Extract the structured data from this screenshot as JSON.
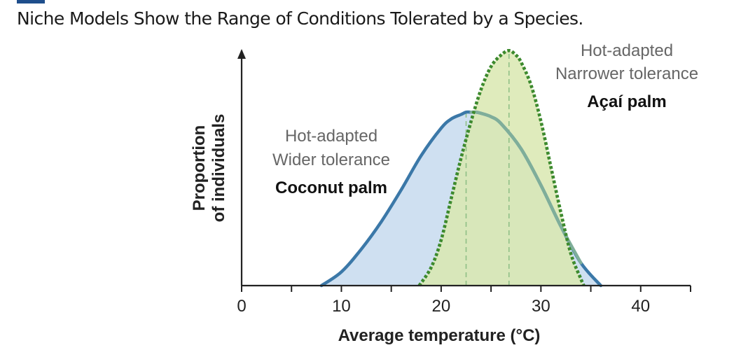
{
  "header": {
    "title": "Niche Models Show the Range of Conditions Tolerated by a Species.",
    "accent_color": "#1f4e8c"
  },
  "chart_data": {
    "type": "area",
    "xlabel": "Average temperature (°C)",
    "ylabel": [
      "Proportion",
      "of individuals"
    ],
    "xlim": [
      0,
      45
    ],
    "ylim": [
      0,
      1.0
    ],
    "x_ticks": [
      0,
      10,
      20,
      30,
      40
    ],
    "x_minor_ticks": [
      5,
      15,
      25,
      35,
      45
    ],
    "grid": false,
    "legend": "none",
    "series": [
      {
        "key": "coconut",
        "name": "Coconut palm",
        "traits": [
          "Hot-adapted",
          "Wider tolerance"
        ],
        "color": "#3b78a8",
        "fill": "#cfe0f1",
        "style": "solid",
        "peak_range": [
          22.5,
          23.5
        ],
        "x": [
          8,
          10,
          12,
          14,
          16,
          18,
          20,
          21,
          22,
          22.5,
          23,
          23.5,
          24,
          25,
          26,
          28,
          30,
          32,
          34,
          36
        ],
        "y": [
          0.0,
          0.06,
          0.16,
          0.28,
          0.42,
          0.57,
          0.69,
          0.73,
          0.75,
          0.76,
          0.76,
          0.76,
          0.755,
          0.74,
          0.71,
          0.6,
          0.44,
          0.26,
          0.1,
          0.0
        ]
      },
      {
        "key": "acai",
        "name": "Açaí palm",
        "traits": [
          "Hot-adapted",
          "Narrower tolerance"
        ],
        "color": "#3d8a2e",
        "fill": "#d9e8b0",
        "style": "dotted",
        "peak": 26.8,
        "x": [
          17.8,
          19,
          20,
          21,
          22,
          23,
          24,
          25,
          26,
          26.8,
          27.5,
          28,
          29,
          30,
          31,
          32,
          33,
          34,
          34.3
        ],
        "y": [
          0.0,
          0.08,
          0.2,
          0.38,
          0.56,
          0.72,
          0.86,
          0.96,
          1.01,
          1.03,
          1.01,
          0.98,
          0.88,
          0.72,
          0.52,
          0.32,
          0.14,
          0.03,
          0.0
        ]
      }
    ]
  }
}
